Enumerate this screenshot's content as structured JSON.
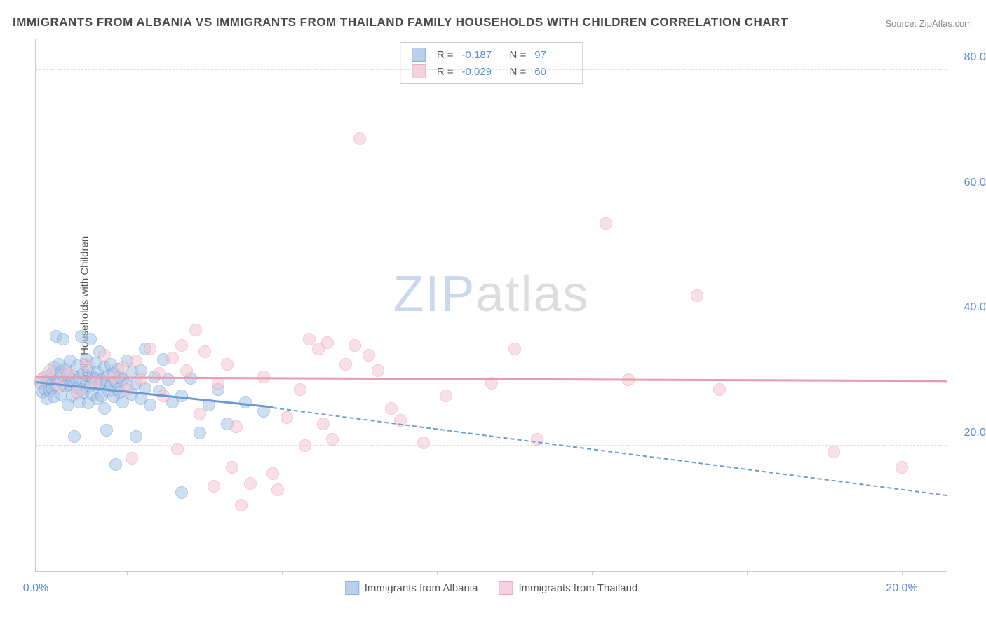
{
  "title": "IMMIGRANTS FROM ALBANIA VS IMMIGRANTS FROM THAILAND FAMILY HOUSEHOLDS WITH CHILDREN CORRELATION CHART",
  "source": "Source: ZipAtlas.com",
  "ylabel": "Family Households with Children",
  "watermark_zip": "ZIP",
  "watermark_atlas": "atlas",
  "chart": {
    "type": "scatter",
    "background_color": "#ffffff",
    "grid_color": "#dddddd",
    "axis_color": "#cccccc",
    "label_color": "#5b8bd4",
    "text_color": "#555555",
    "title_color": "#4a4a4a",
    "xlim": [
      0,
      20
    ],
    "ylim": [
      0,
      85
    ],
    "xticks": [
      0,
      2.0,
      3.7,
      5.4,
      7.1,
      8.8,
      10.5,
      12.2,
      13.9,
      15.6,
      17.3,
      19.0
    ],
    "xtick_labels": [
      "0.0%",
      "",
      "",
      "",
      "",
      "",
      "",
      "",
      "",
      "",
      "",
      "20.0%"
    ],
    "yticks": [
      20,
      40,
      60,
      80
    ],
    "ytick_labels": [
      "20.0%",
      "40.0%",
      "60.0%",
      "80.0%"
    ],
    "marker_radius": 9,
    "marker_stroke_width": 1.5,
    "line_width": 3,
    "series": [
      {
        "name": "Immigrants from Albania",
        "fill_color": "#a8c5e8",
        "stroke_color": "#6b9bd1",
        "fill_opacity": 0.55,
        "R": "-0.187",
        "N": "97",
        "trend_start": [
          0,
          30
        ],
        "trend_end": [
          5.2,
          26
        ],
        "trend_dash_end": [
          20,
          12
        ],
        "points": [
          [
            0.1,
            30
          ],
          [
            0.15,
            28.5
          ],
          [
            0.2,
            31
          ],
          [
            0.2,
            29
          ],
          [
            0.25,
            30.2
          ],
          [
            0.25,
            27.5
          ],
          [
            0.3,
            28.8
          ],
          [
            0.3,
            30.5
          ],
          [
            0.35,
            29.2
          ],
          [
            0.35,
            31.5
          ],
          [
            0.4,
            32.5
          ],
          [
            0.4,
            27.8
          ],
          [
            0.45,
            37.5
          ],
          [
            0.45,
            29.8
          ],
          [
            0.5,
            33
          ],
          [
            0.5,
            30.8
          ],
          [
            0.55,
            31.8
          ],
          [
            0.55,
            28.2
          ],
          [
            0.6,
            37
          ],
          [
            0.6,
            30
          ],
          [
            0.65,
            29.5
          ],
          [
            0.65,
            32.2
          ],
          [
            0.7,
            26.5
          ],
          [
            0.7,
            31.2
          ],
          [
            0.75,
            29.8
          ],
          [
            0.75,
            33.5
          ],
          [
            0.8,
            30.5
          ],
          [
            0.8,
            28
          ],
          [
            0.85,
            21.5
          ],
          [
            0.85,
            31
          ],
          [
            0.9,
            29.2
          ],
          [
            0.9,
            32.8
          ],
          [
            0.95,
            27
          ],
          [
            0.95,
            30.8
          ],
          [
            1.0,
            37.5
          ],
          [
            1.0,
            29
          ],
          [
            1.05,
            31.5
          ],
          [
            1.05,
            28.5
          ],
          [
            1.1,
            33.8
          ],
          [
            1.1,
            30.2
          ],
          [
            1.15,
            26.8
          ],
          [
            1.15,
            32
          ],
          [
            1.2,
            37
          ],
          [
            1.2,
            29.5
          ],
          [
            1.25,
            31
          ],
          [
            1.25,
            28.2
          ],
          [
            1.3,
            30.8
          ],
          [
            1.3,
            33.2
          ],
          [
            1.35,
            27.5
          ],
          [
            1.35,
            31.8
          ],
          [
            1.4,
            29.8
          ],
          [
            1.4,
            35
          ],
          [
            1.45,
            30.5
          ],
          [
            1.45,
            28
          ],
          [
            1.5,
            32.5
          ],
          [
            1.5,
            26
          ],
          [
            1.55,
            22.5
          ],
          [
            1.55,
            30
          ],
          [
            1.6,
            31.2
          ],
          [
            1.6,
            28.8
          ],
          [
            1.65,
            33
          ],
          [
            1.65,
            29.5
          ],
          [
            1.7,
            31.5
          ],
          [
            1.7,
            27.8
          ],
          [
            1.75,
            30.2
          ],
          [
            1.75,
            17
          ],
          [
            1.8,
            29
          ],
          [
            1.8,
            32.2
          ],
          [
            1.85,
            28.5
          ],
          [
            1.85,
            31
          ],
          [
            1.9,
            27
          ],
          [
            1.9,
            30.5
          ],
          [
            2.0,
            29.8
          ],
          [
            2.0,
            33.5
          ],
          [
            2.1,
            28.2
          ],
          [
            2.1,
            31.8
          ],
          [
            2.2,
            21.5
          ],
          [
            2.2,
            30
          ],
          [
            2.3,
            27.5
          ],
          [
            2.3,
            32
          ],
          [
            2.4,
            29.2
          ],
          [
            2.4,
            35.5
          ],
          [
            2.5,
            26.5
          ],
          [
            2.6,
            31
          ],
          [
            2.7,
            28.8
          ],
          [
            2.8,
            33.8
          ],
          [
            2.9,
            30.5
          ],
          [
            3.0,
            27
          ],
          [
            3.2,
            12.5
          ],
          [
            3.2,
            28
          ],
          [
            3.4,
            30.8
          ],
          [
            3.6,
            22
          ],
          [
            3.8,
            26.5
          ],
          [
            4.0,
            29
          ],
          [
            4.2,
            23.5
          ],
          [
            4.6,
            27
          ],
          [
            5.0,
            25.5
          ]
        ]
      },
      {
        "name": "Immigrants from Thailand",
        "fill_color": "#f5c6d3",
        "stroke_color": "#e89bb0",
        "fill_opacity": 0.55,
        "R": "-0.029",
        "N": "60",
        "trend_start": [
          0,
          30.8
        ],
        "trend_end": [
          20,
          30.2
        ],
        "points": [
          [
            0.1,
            30.5
          ],
          [
            0.3,
            32
          ],
          [
            0.5,
            29.5
          ],
          [
            0.7,
            31.5
          ],
          [
            0.9,
            28.5
          ],
          [
            1.1,
            33
          ],
          [
            1.3,
            30
          ],
          [
            1.5,
            34.5
          ],
          [
            1.7,
            31
          ],
          [
            1.9,
            32.5
          ],
          [
            2.0,
            29
          ],
          [
            2.2,
            33.5
          ],
          [
            2.3,
            30.5
          ],
          [
            2.5,
            35.5
          ],
          [
            2.7,
            31.5
          ],
          [
            2.8,
            28
          ],
          [
            3.0,
            34
          ],
          [
            3.2,
            36
          ],
          [
            3.3,
            32
          ],
          [
            3.5,
            38.5
          ],
          [
            3.7,
            35
          ],
          [
            3.9,
            13.5
          ],
          [
            4.0,
            30
          ],
          [
            4.2,
            33
          ],
          [
            4.3,
            16.5
          ],
          [
            4.5,
            10.5
          ],
          [
            4.7,
            14
          ],
          [
            5.0,
            31
          ],
          [
            5.2,
            15.5
          ],
          [
            5.5,
            24.5
          ],
          [
            5.8,
            29
          ],
          [
            6.0,
            37
          ],
          [
            6.2,
            35.5
          ],
          [
            6.4,
            36.5
          ],
          [
            6.5,
            21
          ],
          [
            6.8,
            33
          ],
          [
            7.0,
            36
          ],
          [
            7.1,
            69
          ],
          [
            7.3,
            34.5
          ],
          [
            7.5,
            32
          ],
          [
            8.0,
            24
          ],
          [
            8.5,
            20.5
          ],
          [
            9.0,
            28
          ],
          [
            10.0,
            30
          ],
          [
            10.5,
            35.5
          ],
          [
            11.0,
            21
          ],
          [
            12.5,
            55.5
          ],
          [
            13.0,
            30.5
          ],
          [
            14.5,
            44
          ],
          [
            15.0,
            29
          ],
          [
            17.5,
            19
          ],
          [
            19.0,
            16.5
          ],
          [
            2.1,
            18
          ],
          [
            3.1,
            19.5
          ],
          [
            3.6,
            25
          ],
          [
            4.4,
            23
          ],
          [
            5.3,
            13
          ],
          [
            5.9,
            20
          ],
          [
            6.3,
            23.5
          ],
          [
            7.8,
            26
          ]
        ]
      }
    ]
  }
}
